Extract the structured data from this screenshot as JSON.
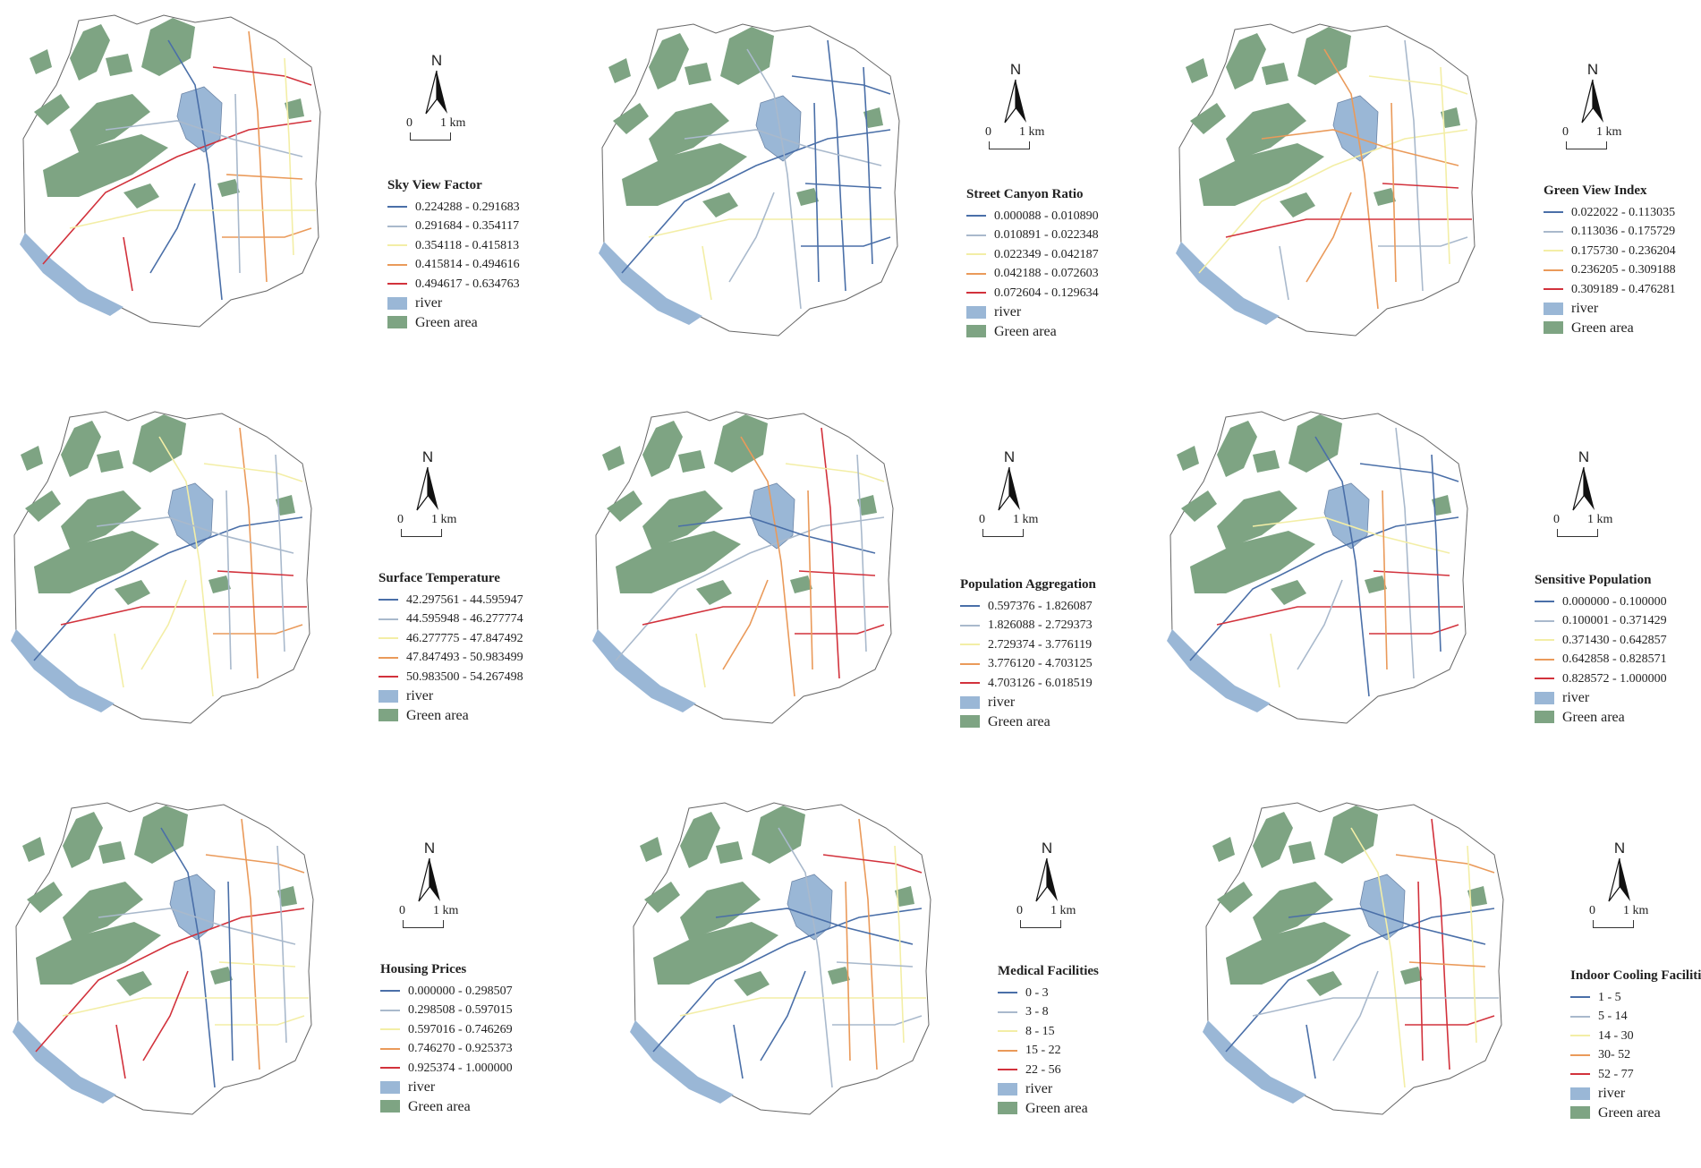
{
  "north_label": "N",
  "scale": {
    "start": "0",
    "end": "1 km"
  },
  "class_colors": [
    "#4a6fa8",
    "#a9b9cc",
    "#f3eea6",
    "#ea9a5a",
    "#d2323c"
  ],
  "river": {
    "label": "river",
    "color": "#9ab7d6"
  },
  "green_area": {
    "label": "Green area",
    "color": "#7ea483"
  },
  "panels": [
    {
      "title": "Sky View Factor",
      "classes": [
        "0.224288 - 0.291683",
        "0.291684 - 0.354117",
        "0.354118 - 0.415813",
        "0.415814 - 0.494616",
        "0.494617 - 0.634763"
      ]
    },
    {
      "title": "Street Canyon Ratio",
      "classes": [
        "0.000088 - 0.010890",
        "0.010891 - 0.022348",
        "0.022349 - 0.042187",
        "0.042188 - 0.072603",
        "0.072604 - 0.129634"
      ]
    },
    {
      "title": "Green View Index",
      "classes": [
        "0.022022 - 0.113035",
        "0.113036 - 0.175729",
        "0.175730 - 0.236204",
        "0.236205 - 0.309188",
        "0.309189 - 0.476281"
      ]
    },
    {
      "title": "Surface Temperature",
      "classes": [
        "42.297561 - 44.595947",
        "44.595948 - 46.277774",
        "46.277775 - 47.847492",
        "47.847493 - 50.983499",
        "50.983500 - 54.267498"
      ]
    },
    {
      "title": "Population Aggregation",
      "classes": [
        "0.597376 - 1.826087",
        "1.826088 - 2.729373",
        "2.729374 - 3.776119",
        "3.776120 - 4.703125",
        "4.703126 - 6.018519"
      ]
    },
    {
      "title": "Sensitive Population",
      "classes": [
        "0.000000 - 0.100000",
        "0.100001 - 0.371429",
        "0.371430 - 0.642857",
        "0.642858 - 0.828571",
        "0.828572 - 1.000000"
      ]
    },
    {
      "title": "Housing Prices",
      "classes": [
        "0.000000 - 0.298507",
        "0.298508 - 0.597015",
        "0.597016 - 0.746269",
        "0.746270 - 0.925373",
        "0.925374 - 1.000000"
      ]
    },
    {
      "title": "Medical Facilities",
      "classes": [
        "0 - 3",
        "3 - 8",
        "8 - 15",
        "15 - 22",
        "22 - 56"
      ]
    },
    {
      "title": "Indoor Cooling Facilities",
      "classes": [
        "1 - 5",
        "5 - 14",
        "14 - 30",
        "30- 52",
        "52 - 77"
      ]
    }
  ]
}
